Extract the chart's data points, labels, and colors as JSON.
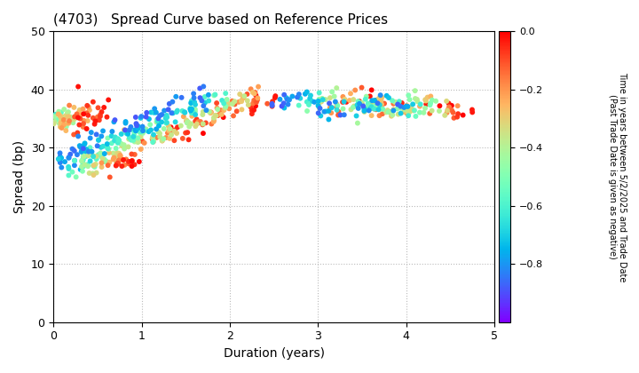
{
  "title": "(4703)   Spread Curve based on Reference Prices",
  "xlabel": "Duration (years)",
  "ylabel": "Spread (bp)",
  "colorbar_label": "Time in years between 5/2/2025 and Trade Date\n(Past Trade Date is given as negative)",
  "xlim": [
    0,
    5
  ],
  "ylim": [
    0,
    50
  ],
  "xticks": [
    0,
    1,
    2,
    3,
    4,
    5
  ],
  "yticks": [
    0,
    10,
    20,
    30,
    40,
    50
  ],
  "cmap": "rainbow",
  "clim": [
    -1.0,
    0.0
  ],
  "cticks": [
    0.0,
    -0.2,
    -0.4,
    -0.6,
    -0.8
  ],
  "background": "#ffffff",
  "grid_color": "#bbbbbb",
  "marker_size": 18,
  "figwidth": 7.2,
  "figheight": 4.2,
  "dpi": 100
}
